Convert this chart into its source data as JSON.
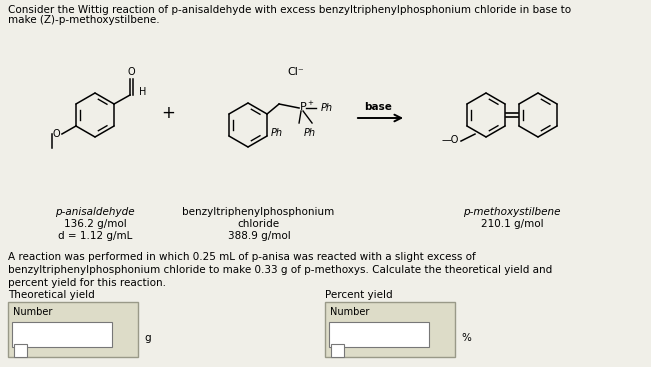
{
  "bg_color": "#f0efe8",
  "white": "#ffffff",
  "title_text_l1": "Consider the Wittig reaction of p-anisaldehyde with excess benzyltriphenylphosphonium chloride in base to",
  "title_text_l2": "make (Z)-p-methoxystilbene.",
  "reaction_paragraph": "A reaction was performed in which 0.25 mL of p-anisa was reacted with a slight excess of\nbenzyltriphenylphosphonium chloride to make 0.33 g of p-methoxys. Calculate the theoretical yield and\npercent yield for this reaction.",
  "theoretical_label": "Theoretical yield",
  "percent_label": "Percent yield",
  "number_label": "Number",
  "unit_g": "g",
  "unit_pct": "%",
  "plus_sign": "+",
  "base_text": "base",
  "cl_text": "Cl⁻",
  "ph_text": "Ph",
  "label1_line1": "p-anisaldehyde",
  "label1_line2": "136.2 g/mol",
  "label1_line3": "d = 1.12 g/mL",
  "label2_line1": "benzyltriphenylphosphonium",
  "label2_line2": "chloride",
  "label2_line3": "388.9 g/mol",
  "label3_line1": "p-methoxystilbene",
  "label3_line2": "210.1 g/mol",
  "font_size_title": 7.5,
  "font_size_body": 7.5,
  "font_size_label": 7.5,
  "font_size_struct": 7.0,
  "font_size_small": 6.0
}
